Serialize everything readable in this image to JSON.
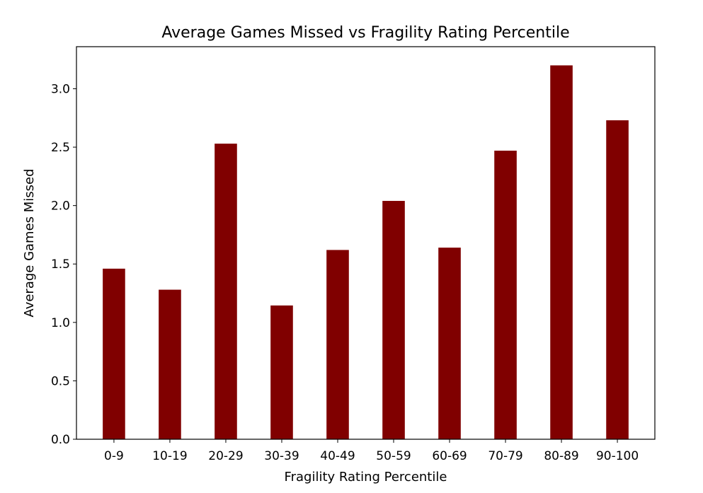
{
  "chart_data": {
    "type": "bar",
    "title": "Average Games Missed vs Fragility Rating Percentile",
    "xlabel": "Fragility Rating Percentile",
    "ylabel": "Average Games Missed",
    "categories": [
      "0-9",
      "10-19",
      "20-29",
      "30-39",
      "40-49",
      "50-59",
      "60-69",
      "70-79",
      "80-89",
      "90-100"
    ],
    "values": [
      1.46,
      1.28,
      2.53,
      1.145,
      1.62,
      2.04,
      1.64,
      2.47,
      3.2,
      2.73
    ],
    "ylim": [
      0,
      3.36
    ],
    "yticks": [
      0.0,
      0.5,
      1.0,
      1.5,
      2.0,
      2.5,
      3.0
    ],
    "ytick_labels": [
      "0.0",
      "0.5",
      "1.0",
      "1.5",
      "2.0",
      "2.5",
      "3.0"
    ],
    "bar_color": "#800000",
    "bar_width": 0.4,
    "grid": false
  }
}
